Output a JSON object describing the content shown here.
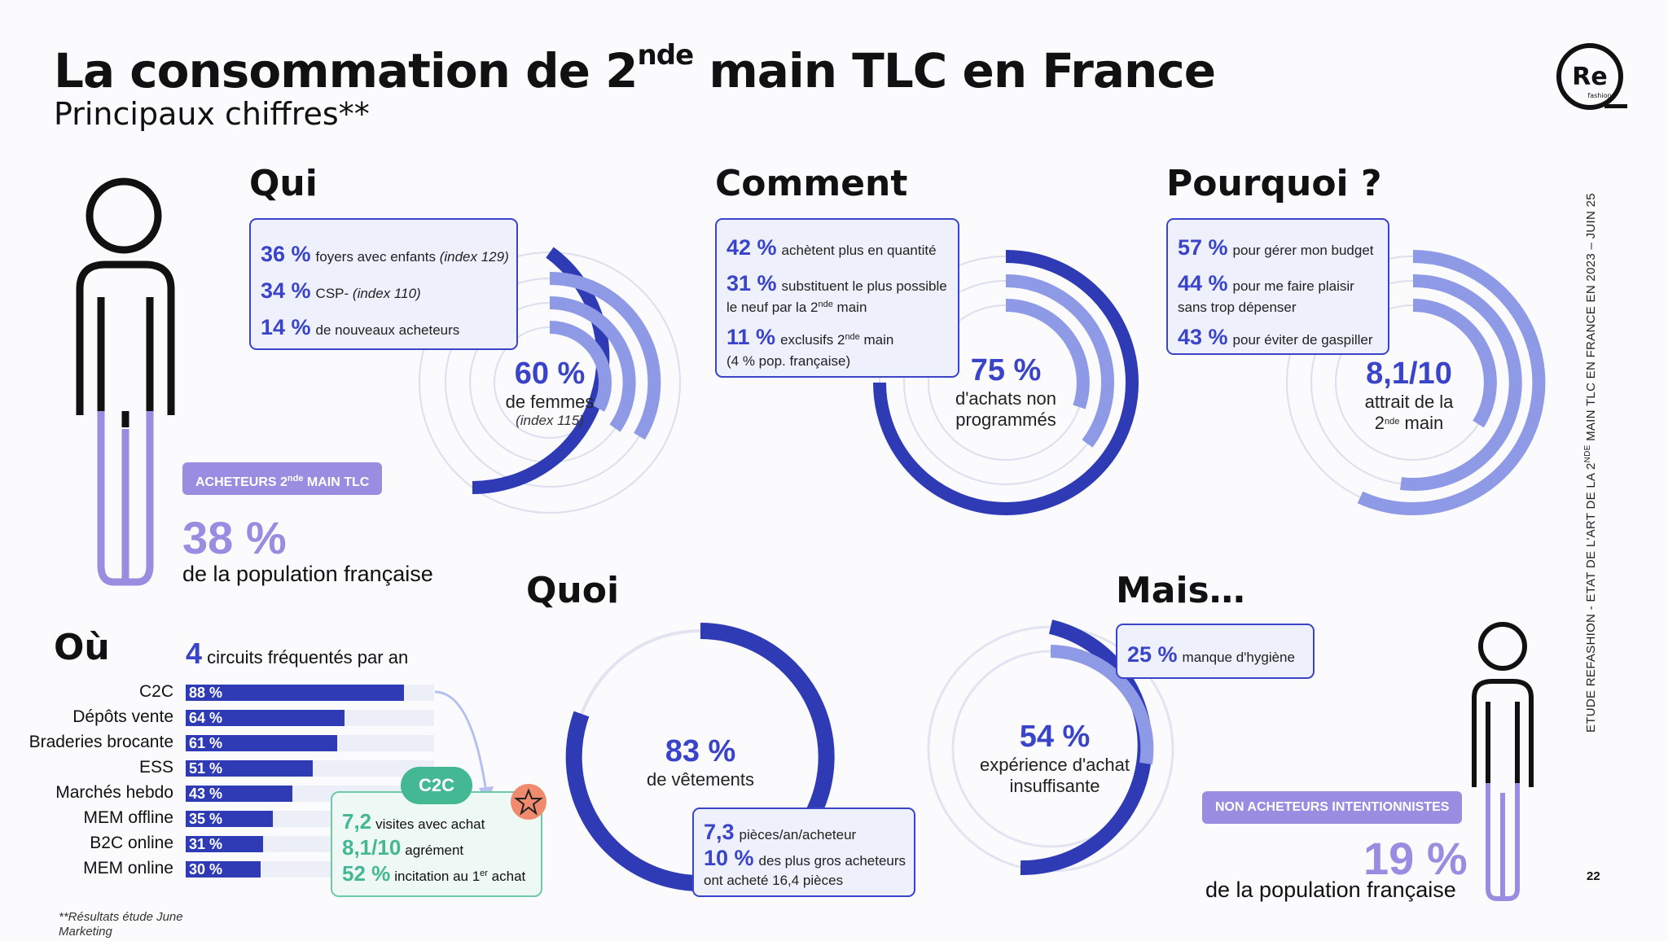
{
  "header": {
    "title_a": "La consommation de 2",
    "title_sup": "nde",
    "title_b": " main TLC en France",
    "subtitle": "Principaux chiffres**"
  },
  "logo": {
    "text": "Re",
    "sub": "fashion"
  },
  "qui": {
    "title": "Qui",
    "items": [
      {
        "value": "36 %",
        "text": "foyers avec enfants",
        "note": "(index 129)"
      },
      {
        "value": "34 %",
        "text": "CSP-",
        "note": "(index 110)"
      },
      {
        "value": "14 %",
        "text": "de nouveaux acheteurs"
      }
    ],
    "center": {
      "value": "60 %",
      "label": "de femmes",
      "sub": "(index 115)"
    },
    "badge_a": "ACHETEURS 2",
    "badge_sup": "nde",
    "badge_b": " MAIN TLC",
    "pct": "38 %",
    "pop": "de la population française"
  },
  "comment": {
    "title": "Comment",
    "items": [
      {
        "value": "42 %",
        "text": "achètent plus en quantité"
      },
      {
        "value": "31 %",
        "text": "substituent le plus possible",
        "line2_a": "le neuf par la 2",
        "line2_sup": "nde",
        "line2_b": " main"
      },
      {
        "value": "11 %",
        "text_a": "exclusifs 2",
        "text_sup": "nde",
        "text_b": " main",
        "line2": "(4 % pop. française)"
      }
    ],
    "center": {
      "value": "75 %",
      "label1": "d'achats non",
      "label2": "programmés"
    }
  },
  "pourquoi": {
    "title": "Pourquoi ?",
    "items": [
      {
        "value": "57 %",
        "text": "pour gérer mon budget"
      },
      {
        "value": "44 %",
        "text": "pour me faire plaisir",
        "line2": "sans trop dépenser"
      },
      {
        "value": "43 %",
        "text": "pour éviter de gaspiller"
      }
    ],
    "center": {
      "value": "8,1/10",
      "label1": "attrait de la",
      "label2_a": "2",
      "label2_sup": "nde",
      "label2_b": " main"
    }
  },
  "ou": {
    "title": "Où",
    "circuits_value": "4",
    "circuits_text": "circuits fréquentés par an",
    "bars": [
      {
        "label": "C2C",
        "pct": "88 %",
        "value": 88
      },
      {
        "label": "Dépôts vente",
        "pct": "64 %",
        "value": 64
      },
      {
        "label": "Braderies brocante",
        "pct": "61 %",
        "value": 61
      },
      {
        "label": "ESS",
        "pct": "51 %",
        "value": 51
      },
      {
        "label": "Marchés hebdo",
        "pct": "43 %",
        "value": 43
      },
      {
        "label": "MEM offline",
        "pct": "35 %",
        "value": 35
      },
      {
        "label": "B2C online",
        "pct": "31 %",
        "value": 31
      },
      {
        "label": "MEM online",
        "pct": "30 %",
        "value": 30
      }
    ],
    "c2c": {
      "tag": "C2C",
      "l1_value": "7,2",
      "l1_text": "visites avec achat",
      "l2_value": "8,1/10",
      "l2_text": "agrément",
      "l3_value": "52 %",
      "l3_text_a": "incitation au 1",
      "l3_sup": "er",
      "l3_text_b": " achat"
    }
  },
  "quoi": {
    "title": "Quoi",
    "center": {
      "value": "83 %",
      "label": "de vêtements"
    },
    "box": {
      "l1_value": "7,3",
      "l1_text": "pièces/an/acheteur",
      "l2_value": "10 %",
      "l2_text": "des plus gros acheteurs",
      "l3": "ont acheté 16,4 pièces"
    }
  },
  "mais": {
    "title": "Mais…",
    "box": {
      "value": "25 %",
      "text": "manque d'hygiène"
    },
    "center": {
      "value": "54 %",
      "label1": "expérience d'achat",
      "label2": "insuffisante"
    },
    "badge": "NON ACHETEURS INTENTIONNISTES",
    "pct": "19 %",
    "pop": "de la population française"
  },
  "footnote": {
    "l1": "**Résultats étude June",
    "l2": "Marketing"
  },
  "sidebar": {
    "a": "ETUDE REFASHION - ETAT DE L'ART DE LA 2",
    "sup": "NDE",
    "b": " MAIN TLC EN FRANCE EN 2023 – JUIN 25"
  },
  "page_number": "22",
  "colors": {
    "primary": "#3a44c8",
    "dark": "#2e3bb5",
    "light": "#8e9ae6",
    "lilac": "#9a8ce0",
    "green": "#43b892"
  }
}
